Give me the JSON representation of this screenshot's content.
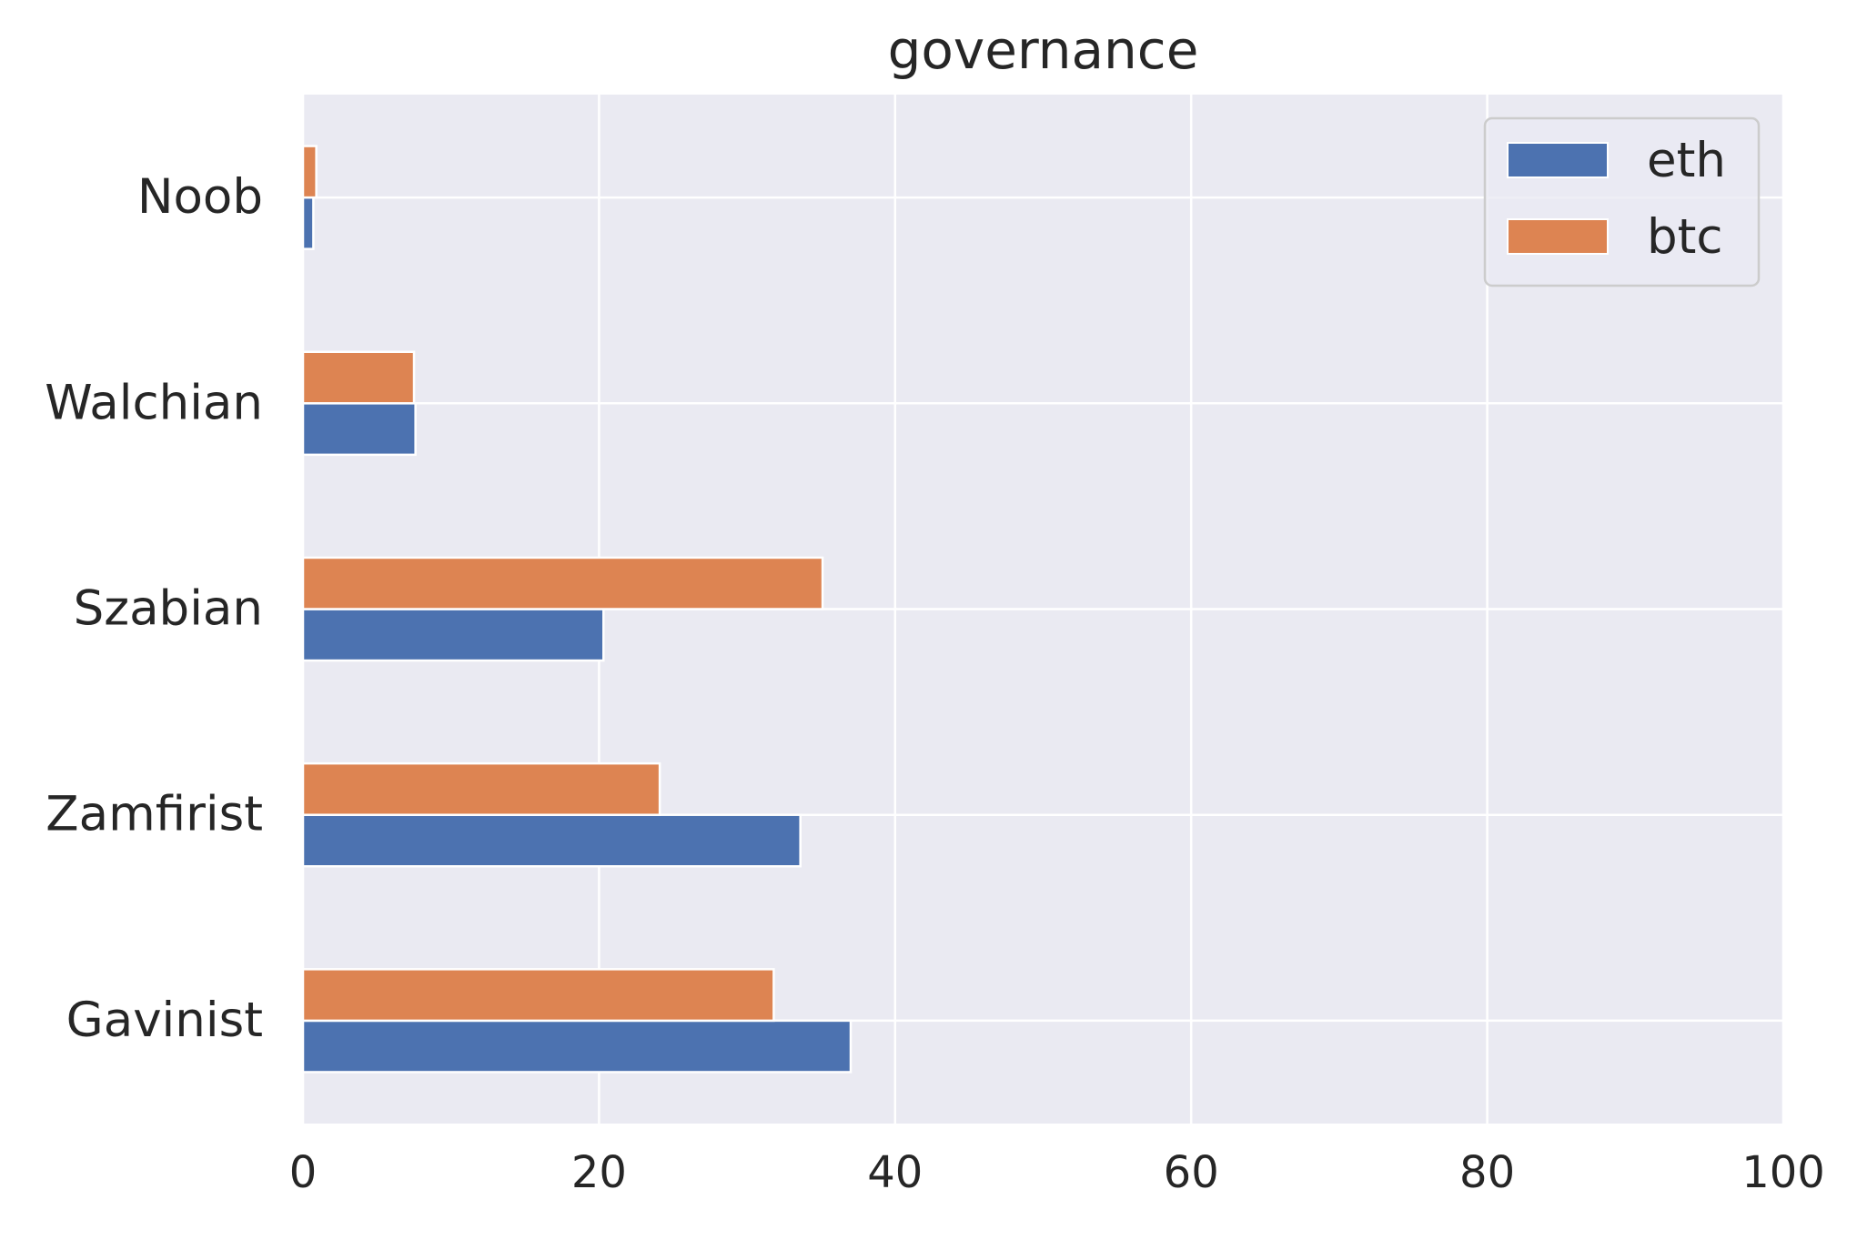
{
  "chart_data": {
    "type": "bar",
    "orientation": "horizontal",
    "title": "governance",
    "xlabel": "",
    "ylabel": "",
    "categories": [
      "Gavinist",
      "Zamfirist",
      "Szabian",
      "Walchian",
      "Noob"
    ],
    "series": [
      {
        "name": "eth",
        "color": "#4c72b0",
        "values": [
          37.0,
          33.6,
          20.3,
          7.6,
          0.7
        ]
      },
      {
        "name": "btc",
        "color": "#dd8452",
        "values": [
          31.8,
          24.1,
          35.1,
          7.5,
          0.9
        ]
      }
    ],
    "xlim": [
      0,
      100
    ],
    "xticks": [
      0,
      20,
      40,
      60,
      80,
      100
    ],
    "grid": true,
    "legend_position": "top-right",
    "plot_background": "#eaeaf2",
    "grid_color": "#ffffff"
  }
}
